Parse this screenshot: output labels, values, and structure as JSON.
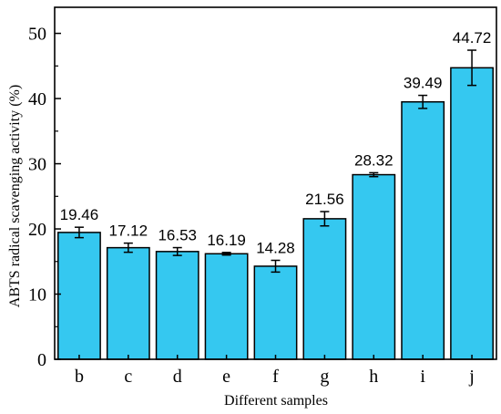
{
  "chart_data": {
    "type": "bar",
    "title": "",
    "xlabel": "Different samples",
    "ylabel": "ABTS radical scavenging activity (%)",
    "categories": [
      "b",
      "c",
      "d",
      "e",
      "f",
      "g",
      "h",
      "i",
      "j"
    ],
    "values": [
      19.46,
      17.12,
      16.53,
      16.19,
      14.28,
      21.56,
      28.32,
      39.49,
      44.72
    ],
    "error": [
      0.8,
      0.7,
      0.6,
      0.2,
      0.9,
      1.1,
      0.3,
      1.0,
      2.7
    ],
    "data_labels": [
      "19.46",
      "17.12",
      "16.53",
      "16.19",
      "14.28",
      "21.56",
      "28.32",
      "39.49",
      "44.72"
    ],
    "ylim": [
      0,
      54
    ],
    "yticks": [
      0,
      10,
      20,
      30,
      40,
      50
    ],
    "grid": false,
    "bar_color": "#35C8F0"
  }
}
